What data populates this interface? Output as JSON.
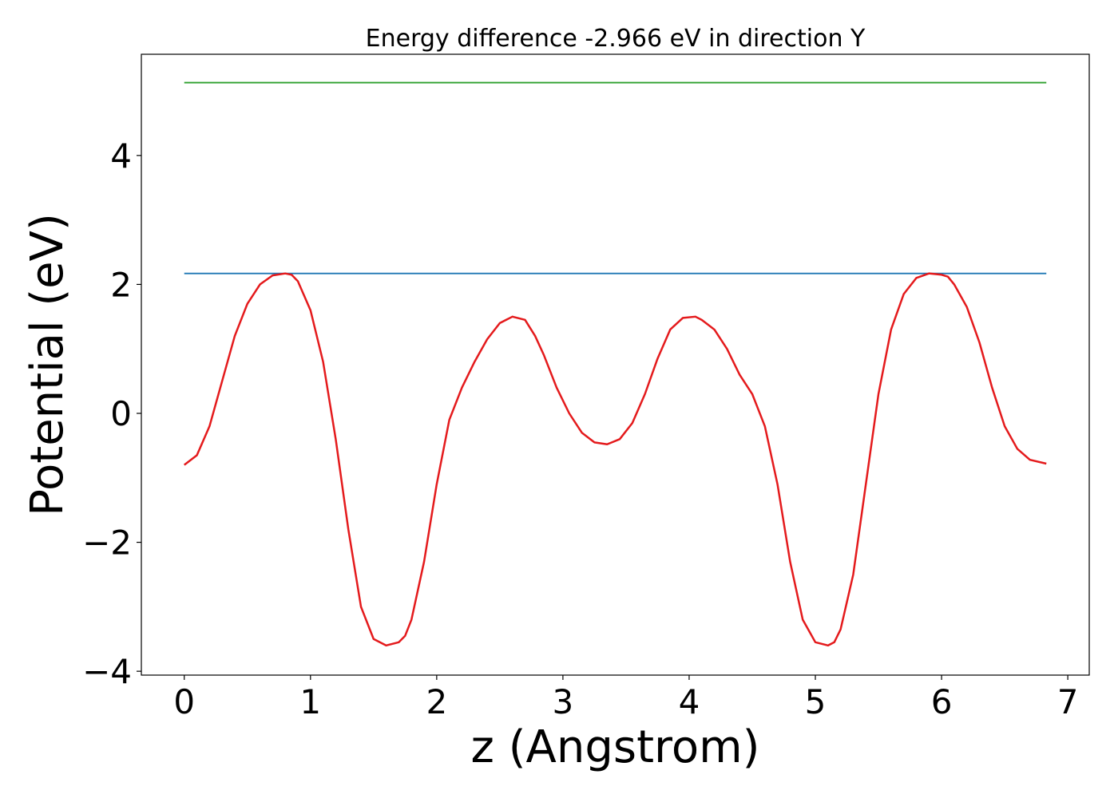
{
  "chart_data": {
    "type": "line",
    "title": "Energy difference -2.966 eV in direction Y",
    "xlabel": "z (Angstrom)",
    "ylabel": "Potential (eV)",
    "xlim": [
      -0.34,
      7.17
    ],
    "ylim": [
      -4.06,
      5.57
    ],
    "xticks": [
      0,
      1,
      2,
      3,
      4,
      5,
      6,
      7
    ],
    "xtick_labels": [
      "0",
      "1",
      "2",
      "3",
      "4",
      "5",
      "6",
      "7"
    ],
    "yticks": [
      -4,
      -2,
      0,
      2,
      4
    ],
    "ytick_labels": [
      "−4",
      "−2",
      "0",
      "2",
      "4"
    ],
    "grid": false,
    "legend": "none",
    "series": [
      {
        "color": "#2ca02c",
        "x": [
          0,
          6.83
        ],
        "y": [
          5.13,
          5.13
        ]
      },
      {
        "color": "#1f77b4",
        "x": [
          0,
          6.83
        ],
        "y": [
          2.17,
          2.17
        ]
      },
      {
        "color": "#e41a1c",
        "x": [
          0,
          0.1,
          0.2,
          0.3,
          0.4,
          0.5,
          0.6,
          0.7,
          0.8,
          0.85,
          0.9,
          1.0,
          1.1,
          1.2,
          1.3,
          1.4,
          1.5,
          1.6,
          1.7,
          1.75,
          1.8,
          1.9,
          2.0,
          2.1,
          2.2,
          2.3,
          2.4,
          2.5,
          2.6,
          2.7,
          2.78,
          2.85,
          2.95,
          3.05,
          3.15,
          3.25,
          3.35,
          3.45,
          3.55,
          3.65,
          3.75,
          3.85,
          3.95,
          4.05,
          4.1,
          4.2,
          4.3,
          4.4,
          4.5,
          4.6,
          4.7,
          4.8,
          4.9,
          5.0,
          5.1,
          5.15,
          5.2,
          5.3,
          5.4,
          5.5,
          5.6,
          5.7,
          5.8,
          5.9,
          6.0,
          6.05,
          6.1,
          6.2,
          6.3,
          6.4,
          6.5,
          6.6,
          6.7,
          6.83
        ],
        "y": [
          -0.8,
          -0.65,
          -0.2,
          0.5,
          1.2,
          1.7,
          2.0,
          2.14,
          2.17,
          2.15,
          2.05,
          1.6,
          0.8,
          -0.4,
          -1.8,
          -3.0,
          -3.5,
          -3.6,
          -3.55,
          -3.45,
          -3.2,
          -2.3,
          -1.1,
          -0.1,
          0.4,
          0.8,
          1.15,
          1.4,
          1.5,
          1.45,
          1.2,
          0.9,
          0.4,
          0.0,
          -0.3,
          -0.45,
          -0.48,
          -0.4,
          -0.15,
          0.3,
          0.85,
          1.3,
          1.48,
          1.5,
          1.45,
          1.3,
          1.0,
          0.6,
          0.3,
          -0.2,
          -1.1,
          -2.3,
          -3.2,
          -3.55,
          -3.6,
          -3.55,
          -3.35,
          -2.5,
          -1.1,
          0.3,
          1.3,
          1.85,
          2.1,
          2.17,
          2.15,
          2.12,
          2.0,
          1.65,
          1.1,
          0.4,
          -0.2,
          -0.55,
          -0.72,
          -0.78
        ]
      }
    ]
  }
}
